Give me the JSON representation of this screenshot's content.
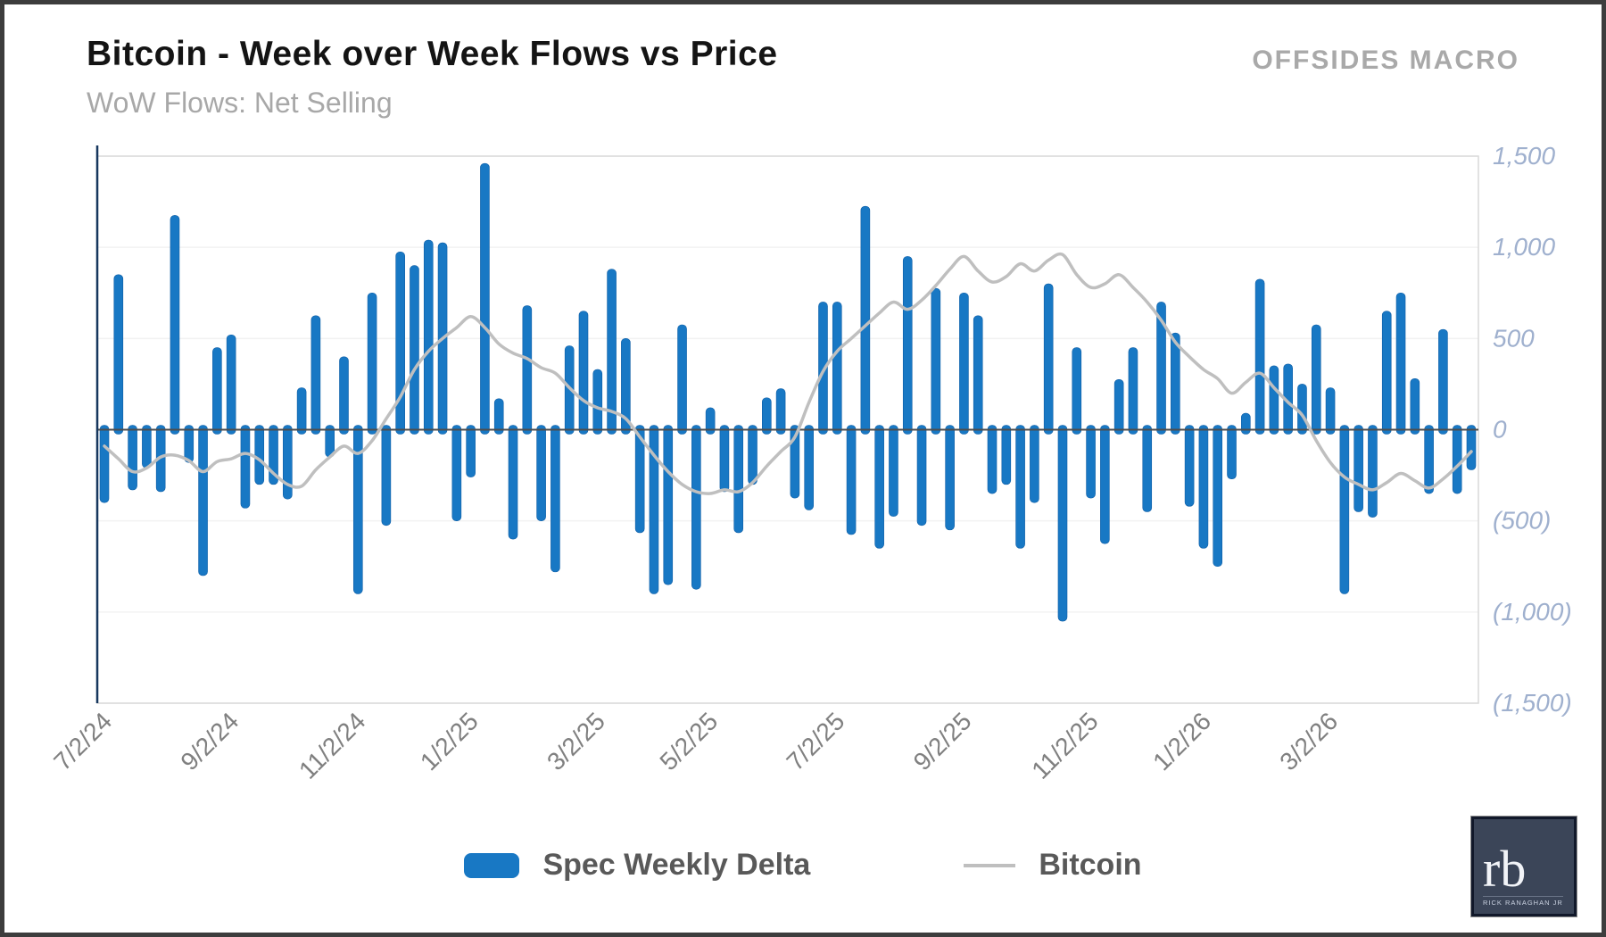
{
  "header": {
    "title": "Bitcoin - Week over Week Flows vs Price",
    "subtitle": "WoW Flows: Net Selling",
    "brand": "OFFSIDES MACRO"
  },
  "legend": {
    "bars_label": "Spec Weekly Delta",
    "line_label": "Bitcoin"
  },
  "logo": {
    "monogram": "rb",
    "caption": "Rick Ranaghan Jr"
  },
  "colors": {
    "bar_fill": "#1878c4",
    "bar_edge": "#0f5ea6",
    "line_gray": "#bfbfbf",
    "axis_zero": "#4d4d4d",
    "axis_left": "#17375e",
    "plot_border": "#d9d9d9",
    "gridline": "#f2f2f2",
    "y_tick_text": "#9fb0ce",
    "x_tick_text": "#808080"
  },
  "chart_data": {
    "type": "bar",
    "title": "Bitcoin - Week over Week Flows vs Price",
    "subtitle": "WoW Flows: Net Selling",
    "frequency": "weekly",
    "start_date": "7/2/24",
    "xlabel": "",
    "ylabel": "",
    "ylim": [
      -1500,
      1500
    ],
    "grid": "faint horizontal",
    "legend_position": "bottom-center",
    "y_axis_side": "right",
    "y_tick_labels": [
      "1,500",
      "1,000",
      "500",
      "0",
      "(500)",
      "(1,000)",
      "(1,500)"
    ],
    "y_tick_values": [
      1500,
      1000,
      500,
      0,
      -500,
      -1000,
      -1500
    ],
    "x_tick_labels": [
      "7/2/24",
      "9/2/24",
      "11/2/24",
      "1/2/25",
      "3/2/25",
      "5/2/25",
      "7/2/25",
      "9/2/25",
      "11/2/25",
      "1/2/26",
      "3/2/26"
    ],
    "x_tick_indices": [
      0,
      9,
      18,
      26,
      35,
      43,
      52,
      61,
      70,
      78,
      87
    ],
    "series": [
      {
        "name": "Spec Weekly Delta",
        "type": "bar",
        "color": "#1878c4",
        "values": [
          -400,
          850,
          -330,
          -210,
          -340,
          1175,
          -180,
          -800,
          450,
          520,
          -430,
          -300,
          -300,
          -380,
          230,
          625,
          -150,
          400,
          -900,
          750,
          -525,
          975,
          900,
          1040,
          1025,
          -500,
          -260,
          1460,
          170,
          -600,
          680,
          -500,
          -780,
          460,
          650,
          330,
          880,
          500,
          -565,
          -900,
          -850,
          575,
          -875,
          120,
          -340,
          -565,
          -300,
          175,
          225,
          -375,
          -440,
          700,
          700,
          -575,
          1225,
          -650,
          -475,
          950,
          -525,
          775,
          -550,
          750,
          625,
          -350,
          -300,
          -650,
          -400,
          800,
          -1050,
          450,
          -375,
          -625,
          275,
          450,
          -450,
          700,
          530,
          -420,
          -650,
          -750,
          -270,
          90,
          825,
          350,
          360,
          250,
          575,
          230,
          -900,
          -450,
          -480,
          650,
          750,
          280,
          -350,
          550,
          -350,
          -220
        ]
      },
      {
        "name": "Bitcoin",
        "type": "line",
        "color": "#bfbfbf",
        "values": [
          -90,
          -160,
          -230,
          -210,
          -150,
          -140,
          -170,
          -230,
          -175,
          -160,
          -130,
          -165,
          -240,
          -300,
          -310,
          -220,
          -150,
          -90,
          -130,
          -60,
          60,
          180,
          330,
          430,
          500,
          560,
          620,
          560,
          470,
          420,
          390,
          340,
          310,
          230,
          160,
          120,
          100,
          60,
          -40,
          -140,
          -230,
          -300,
          -340,
          -350,
          -330,
          -340,
          -290,
          -200,
          -120,
          -40,
          150,
          320,
          430,
          500,
          570,
          640,
          700,
          660,
          710,
          790,
          880,
          950,
          870,
          810,
          840,
          910,
          870,
          930,
          960,
          850,
          780,
          800,
          850,
          780,
          700,
          600,
          480,
          400,
          330,
          280,
          200,
          260,
          310,
          230,
          150,
          80,
          -60,
          -180,
          -260,
          -300,
          -330,
          -290,
          -240,
          -280,
          -320,
          -270,
          -200,
          -120
        ]
      }
    ]
  }
}
